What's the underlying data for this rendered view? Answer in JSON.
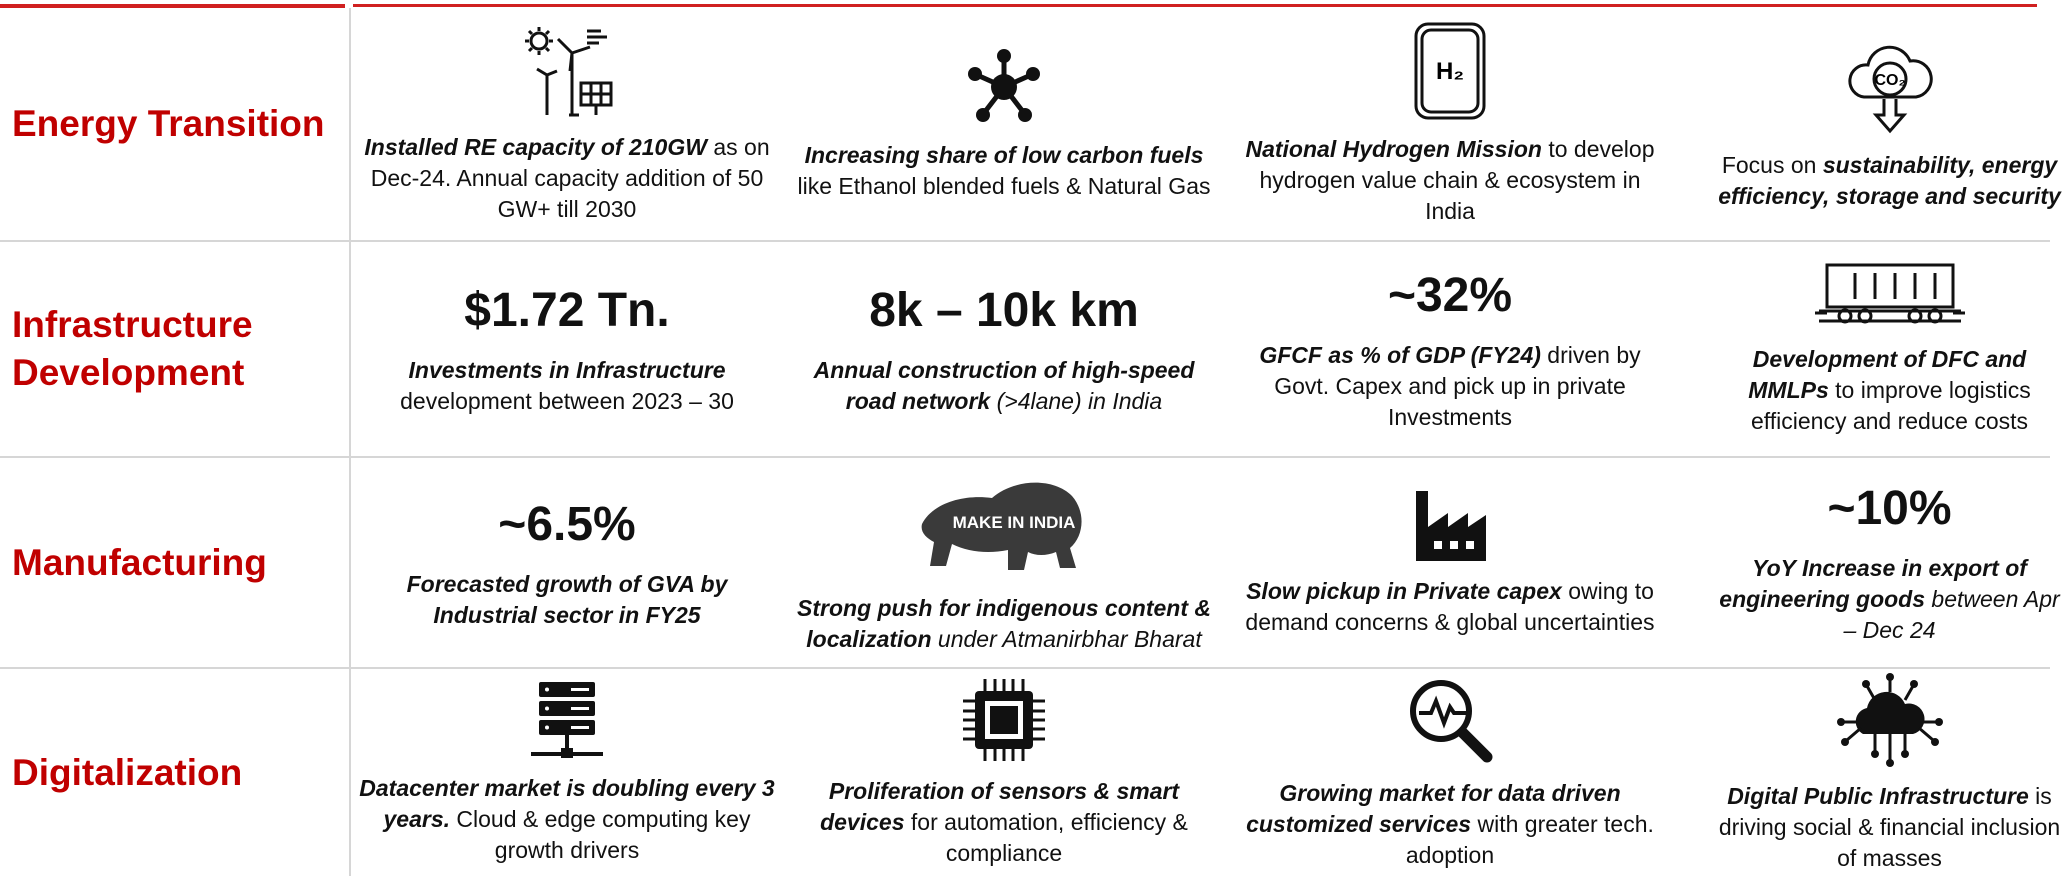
{
  "rows": [
    {
      "label": "Energy Transition",
      "cells": [
        {
          "text": [
            {
              "text": "Installed RE capacity of 210GW",
              "style": "bold-italic"
            },
            {
              "text": " as on Dec-24. Annual capacity addition of 50 GW+ till 2030",
              "style": "regular"
            }
          ]
        },
        {
          "text": [
            {
              "text": "Increasing share of low carbon fuels",
              "style": "bold-italic"
            },
            {
              "text": " like Ethanol blended fuels & Natural Gas",
              "style": "regular"
            }
          ]
        },
        {
          "icon_label": "H₂",
          "text": [
            {
              "text": "National Hydrogen Mission",
              "style": "bold-italic"
            },
            {
              "text": " to develop hydrogen value chain & ecosystem in India",
              "style": "regular"
            }
          ]
        },
        {
          "icon_label": "CO₂",
          "text": [
            {
              "text": "Focus on ",
              "style": "regular"
            },
            {
              "text": "sustainability, energy efficiency, storage and security",
              "style": "bold-italic"
            }
          ]
        }
      ]
    },
    {
      "label": "Infrastructure Development",
      "cells": [
        {
          "stat": "$1.72 Tn.",
          "text": [
            {
              "text": "Investments in Infrastructure",
              "style": "bold-italic"
            },
            {
              "text": " development between 2023 – 30",
              "style": "regular"
            }
          ]
        },
        {
          "stat": "8k – 10k km",
          "text": [
            {
              "text": "Annual construction of high-speed road network",
              "style": "bold-italic"
            },
            {
              "text": " (>4lane) in India",
              "style": "italic"
            }
          ]
        },
        {
          "stat": "~32%",
          "text": [
            {
              "text": "GFCF as % of GDP (FY24)",
              "style": "bold-italic"
            },
            {
              "text": " driven by Govt. Capex and pick up in private Investments",
              "style": "regular"
            }
          ]
        },
        {
          "text": [
            {
              "text": "Development of DFC and MMLPs",
              "style": "bold-italic"
            },
            {
              "text": " to improve logistics efficiency and reduce costs",
              "style": "regular"
            }
          ]
        }
      ]
    },
    {
      "label": "Manufacturing",
      "cells": [
        {
          "stat": "~6.5%",
          "text": [
            {
              "text": "Forecasted growth of GVA by Industrial sector in FY25",
              "style": "bold-italic"
            }
          ]
        },
        {
          "icon_label": "MAKE IN INDIA",
          "text": [
            {
              "text": "Strong push for indigenous content & localization",
              "style": "bold-italic"
            },
            {
              "text": " under Atmanirbhar Bharat",
              "style": "italic"
            }
          ]
        },
        {
          "text": [
            {
              "text": "Slow pickup in Private capex",
              "style": "bold-italic"
            },
            {
              "text": " owing to demand concerns & global uncertainties",
              "style": "regular"
            }
          ]
        },
        {
          "stat": "~10%",
          "text": [
            {
              "text": "YoY Increase in export of engineering goods",
              "style": "bold-italic"
            },
            {
              "text": " between Apr – Dec 24",
              "style": "italic"
            }
          ]
        }
      ]
    },
    {
      "label": "Digitalization",
      "cells": [
        {
          "text": [
            {
              "text": "Datacenter market is doubling every 3 years.",
              "style": "bold-italic"
            },
            {
              "text": " Cloud & edge computing key growth drivers",
              "style": "regular"
            }
          ]
        },
        {
          "text": [
            {
              "text": "Proliferation of sensors & smart devices",
              "style": "bold-italic"
            },
            {
              "text": " for automation, efficiency & compliance",
              "style": "regular"
            }
          ]
        },
        {
          "text": [
            {
              "text": "Growing market for data driven customized services",
              "style": "bold-italic"
            },
            {
              "text": " with greater tech. adoption",
              "style": "regular"
            }
          ]
        },
        {
          "text": [
            {
              "text": "Digital Public Infrastructure",
              "style": "bold-italic"
            },
            {
              "text": " is driving social & financial inclusion of masses",
              "style": "regular"
            }
          ]
        }
      ]
    }
  ]
}
